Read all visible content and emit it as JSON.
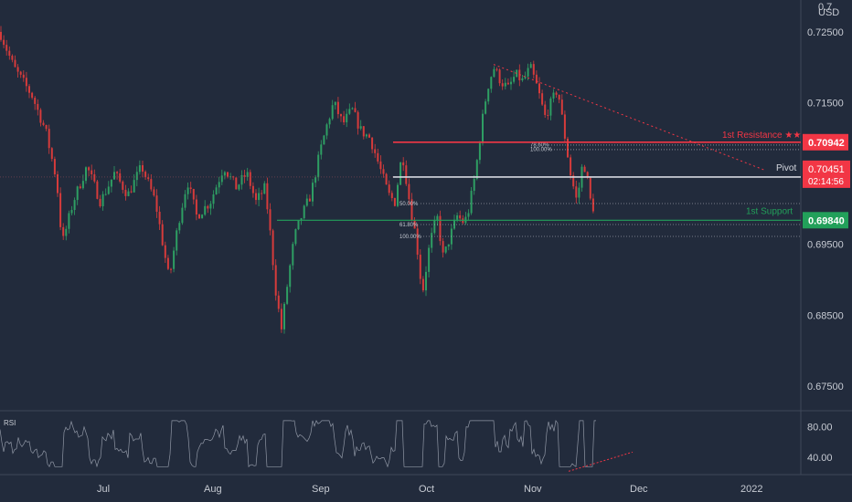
{
  "chart_data": {
    "type": "candlestick",
    "price_axis": {
      "currency": "USD",
      "top_label_partial": "0.7",
      "ticks": [
        "0.72500",
        "0.71500",
        "0.70500",
        "0.69500",
        "0.68500",
        "0.67500"
      ],
      "range": [
        0.6715,
        0.7295
      ]
    },
    "x_axis": {
      "ticks": [
        "Jul",
        "Aug",
        "Sep",
        "Oct",
        "Nov",
        "Dec",
        "2022"
      ]
    },
    "price_path": [
      [
        0,
        0.725
      ],
      [
        15,
        0.72
      ],
      [
        35,
        0.716
      ],
      [
        50,
        0.711
      ],
      [
        62,
        0.704
      ],
      [
        68,
        0.695
      ],
      [
        80,
        0.701
      ],
      [
        95,
        0.706
      ],
      [
        110,
        0.701
      ],
      [
        125,
        0.705
      ],
      [
        140,
        0.702
      ],
      [
        155,
        0.706
      ],
      [
        170,
        0.701
      ],
      [
        185,
        0.69
      ],
      [
        195,
        0.698
      ],
      [
        205,
        0.704
      ],
      [
        215,
        0.699
      ],
      [
        230,
        0.701
      ],
      [
        245,
        0.706
      ],
      [
        258,
        0.703
      ],
      [
        270,
        0.705
      ],
      [
        280,
        0.701
      ],
      [
        290,
        0.703
      ],
      [
        296,
        0.696
      ],
      [
        302,
        0.688
      ],
      [
        308,
        0.683
      ],
      [
        315,
        0.69
      ],
      [
        322,
        0.696
      ],
      [
        330,
        0.699
      ],
      [
        340,
        0.702
      ],
      [
        350,
        0.708
      ],
      [
        358,
        0.712
      ],
      [
        365,
        0.715
      ],
      [
        375,
        0.712
      ],
      [
        385,
        0.714
      ],
      [
        395,
        0.711
      ],
      [
        405,
        0.71
      ],
      [
        415,
        0.706
      ],
      [
        425,
        0.702
      ],
      [
        432,
        0.701
      ],
      [
        440,
        0.708
      ],
      [
        448,
        0.701
      ],
      [
        455,
        0.696
      ],
      [
        462,
        0.688
      ],
      [
        470,
        0.695
      ],
      [
        478,
        0.699
      ],
      [
        485,
        0.693
      ],
      [
        492,
        0.696
      ],
      [
        500,
        0.699
      ],
      [
        508,
        0.698
      ],
      [
        513,
        0.7
      ],
      [
        520,
        0.705
      ],
      [
        527,
        0.712
      ],
      [
        533,
        0.717
      ],
      [
        540,
        0.72
      ],
      [
        548,
        0.718
      ],
      [
        556,
        0.717
      ],
      [
        564,
        0.719
      ],
      [
        572,
        0.718
      ],
      [
        580,
        0.72
      ],
      [
        588,
        0.717
      ],
      [
        596,
        0.713
      ],
      [
        603,
        0.715
      ],
      [
        610,
        0.717
      ],
      [
        617,
        0.711
      ],
      [
        624,
        0.705
      ],
      [
        631,
        0.701
      ],
      [
        638,
        0.707
      ],
      [
        644,
        0.703
      ],
      [
        648,
        0.699
      ],
      [
        652,
        0.7045
      ]
    ],
    "horizontal_levels": [
      {
        "name": "1st Resistance",
        "label": "1st Resistance ★★",
        "value": 0.70942,
        "value_label": "0.70942",
        "color": "#f23645"
      },
      {
        "name": "Pivot",
        "label": "Pivot",
        "value": 0.70451,
        "value_label": "0.70451",
        "color": "#d6d9e0"
      },
      {
        "name": "1st Support",
        "label": "1st Support",
        "value": 0.6984,
        "value_label": "0.69840",
        "color": "#22a05a"
      }
    ],
    "current_price": {
      "value": "0.70451",
      "countdown": "02:14:56",
      "color": "#f23645"
    },
    "fibonacci": [
      {
        "group": "resistance",
        "label": "78.60%"
      },
      {
        "group": "resistance",
        "label": "100.00%"
      },
      {
        "group": "support",
        "label": "50.00%"
      },
      {
        "group": "support",
        "label": "61.80%"
      },
      {
        "group": "support",
        "label": "100.00%"
      }
    ],
    "trendline": {
      "style": "dotted",
      "color": "#f23645",
      "from": [
        540,
        0.7204
      ],
      "to": [
        838,
        0.7054
      ]
    },
    "rsi": {
      "title": "RSI",
      "ticks": [
        "80.00",
        "40.00"
      ],
      "divergence_line": {
        "from": [
          622,
          22
        ],
        "to": [
          692,
          47
        ]
      }
    },
    "grid": false
  },
  "colors": {
    "background": "#222b3c",
    "up": "#2e9e63",
    "down": "#d63b3b",
    "text": "#c7cbd3"
  }
}
